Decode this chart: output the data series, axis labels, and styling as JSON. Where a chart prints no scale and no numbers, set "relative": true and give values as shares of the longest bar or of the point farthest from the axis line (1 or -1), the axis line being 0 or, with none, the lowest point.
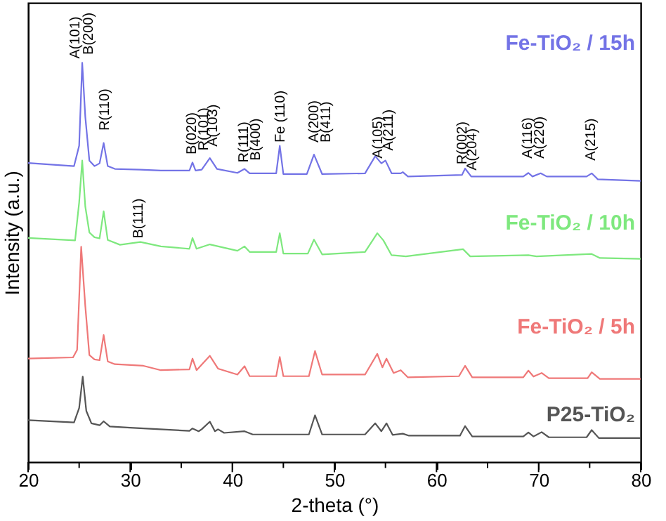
{
  "chart_data": {
    "type": "line",
    "relative": true,
    "xlabel": "2-theta (°)",
    "ylabel": "Intensity (a.u.)",
    "xlim": [
      20,
      80
    ],
    "xticks": [
      20,
      {
        "value": 25,
        "label": null
      },
      30,
      {
        "value": 35,
        "label": null
      },
      40,
      {
        "value": 45,
        "label": null
      },
      50,
      {
        "value": 55,
        "label": null
      },
      60,
      {
        "value": 65,
        "label": null
      },
      70,
      {
        "value": 75,
        "label": null
      },
      80
    ],
    "grid": false,
    "legend": false,
    "marker": "none",
    "line_style": "solid",
    "series": [
      {
        "name": "Fe-TiO₂ / 15h",
        "color": "#7373e6",
        "x": [
          20,
          24.5,
          25.0,
          25.3,
          25.6,
          26.0,
          26.5,
          27.0,
          27.4,
          27.8,
          28.5,
          31.0,
          33.0,
          35.8,
          36.1,
          36.4,
          37.0,
          37.8,
          38.5,
          40.5,
          41.2,
          41.7,
          44.3,
          44.65,
          45.0,
          47.3,
          48.0,
          48.8,
          53.0,
          54.0,
          54.6,
          55.0,
          55.6,
          56.5,
          56.7,
          57.2,
          62.5,
          62.8,
          63.4,
          68.5,
          69.0,
          69.4,
          70.2,
          70.8,
          74.7,
          75.2,
          75.8,
          80
        ],
        "values": [
          0.749,
          0.741,
          0.792,
          1.0,
          0.865,
          0.755,
          0.741,
          0.748,
          0.799,
          0.741,
          0.734,
          0.732,
          0.73,
          0.73,
          0.75,
          0.73,
          0.732,
          0.761,
          0.734,
          0.724,
          0.734,
          0.723,
          0.723,
          0.792,
          0.721,
          0.721,
          0.77,
          0.721,
          0.723,
          0.766,
          0.748,
          0.755,
          0.723,
          0.723,
          0.726,
          0.715,
          0.719,
          0.735,
          0.715,
          0.715,
          0.724,
          0.715,
          0.723,
          0.715,
          0.715,
          0.723,
          0.708,
          0.704
        ]
      },
      {
        "name": "Fe-TiO₂ / 10h",
        "color": "#7ee87e",
        "x": [
          20,
          24.6,
          25.0,
          25.3,
          25.6,
          26.0,
          26.5,
          27.0,
          27.4,
          27.8,
          29.0,
          31.0,
          33.0,
          35.8,
          36.1,
          36.5,
          37.8,
          40.5,
          41.2,
          41.7,
          44.3,
          44.65,
          45.0,
          47.4,
          48.0,
          48.8,
          53.0,
          54.2,
          54.8,
          55.6,
          57.0,
          62.6,
          63.3,
          69.0,
          69.8,
          75.2,
          76.0,
          80
        ],
        "values": [
          0.561,
          0.555,
          0.65,
          0.755,
          0.64,
          0.575,
          0.563,
          0.56,
          0.628,
          0.556,
          0.544,
          0.551,
          0.54,
          0.534,
          0.561,
          0.534,
          0.545,
          0.529,
          0.54,
          0.526,
          0.526,
          0.573,
          0.522,
          0.522,
          0.557,
          0.52,
          0.526,
          0.573,
          0.555,
          0.518,
          0.515,
          0.533,
          0.515,
          0.518,
          0.515,
          0.521,
          0.511,
          0.509
        ]
      },
      {
        "name": "Fe-TiO₂ / 5h",
        "color": "#ef7878",
        "x": [
          20,
          24.4,
          24.8,
          25.2,
          25.6,
          26.0,
          26.5,
          27.0,
          27.4,
          27.8,
          28.5,
          31.3,
          33.0,
          35.8,
          36.1,
          36.5,
          37.8,
          38.6,
          40.5,
          41.2,
          41.7,
          44.3,
          44.65,
          45.0,
          47.5,
          48.1,
          48.8,
          53.0,
          54.2,
          54.7,
          55.1,
          55.8,
          56.5,
          57.2,
          62.2,
          62.8,
          63.5,
          68.5,
          69.0,
          69.5,
          70.3,
          71.0,
          74.8,
          75.2,
          76.0,
          80
        ],
        "values": [
          0.259,
          0.262,
          0.281,
          0.539,
          0.391,
          0.268,
          0.257,
          0.255,
          0.318,
          0.252,
          0.245,
          0.241,
          0.23,
          0.232,
          0.259,
          0.23,
          0.266,
          0.234,
          0.219,
          0.24,
          0.215,
          0.215,
          0.263,
          0.215,
          0.215,
          0.278,
          0.219,
          0.219,
          0.271,
          0.237,
          0.259,
          0.223,
          0.23,
          0.212,
          0.215,
          0.241,
          0.212,
          0.212,
          0.229,
          0.214,
          0.223,
          0.21,
          0.21,
          0.225,
          0.208,
          0.208
        ]
      },
      {
        "name": "P25-TiO₂",
        "color": "#555555",
        "x": [
          20,
          24.5,
          25.0,
          25.35,
          25.7,
          26.2,
          27.0,
          27.4,
          28.0,
          30.0,
          35.8,
          36.1,
          36.7,
          37.0,
          37.8,
          38.3,
          38.6,
          39.2,
          41.2,
          42.0,
          47.5,
          48.1,
          48.8,
          53.0,
          54.0,
          54.6,
          55.1,
          55.7,
          56.7,
          57.3,
          62.3,
          62.8,
          63.5,
          68.5,
          69.0,
          69.5,
          70.3,
          71.0,
          74.7,
          75.2,
          75.9,
          80
        ],
        "values": [
          0.105,
          0.099,
          0.135,
          0.214,
          0.128,
          0.097,
          0.092,
          0.102,
          0.089,
          0.086,
          0.078,
          0.084,
          0.077,
          0.082,
          0.101,
          0.077,
          0.082,
          0.073,
          0.077,
          0.069,
          0.069,
          0.117,
          0.069,
          0.069,
          0.097,
          0.077,
          0.097,
          0.068,
          0.071,
          0.066,
          0.066,
          0.09,
          0.064,
          0.064,
          0.074,
          0.064,
          0.075,
          0.062,
          0.062,
          0.08,
          0.06,
          0.06
        ]
      }
    ],
    "annotations": [
      "A(101)",
      "B(200)",
      "R(110)",
      "B(020)",
      "R(101)",
      "A(103)",
      "R(111)",
      "B(400)",
      "Fe (110)",
      "A(200)",
      "B(411)",
      "A(105)",
      "A(211)",
      "R(002)",
      "A(204)",
      "A(116)",
      "A(220)",
      "A(215)",
      "B(111)"
    ]
  }
}
